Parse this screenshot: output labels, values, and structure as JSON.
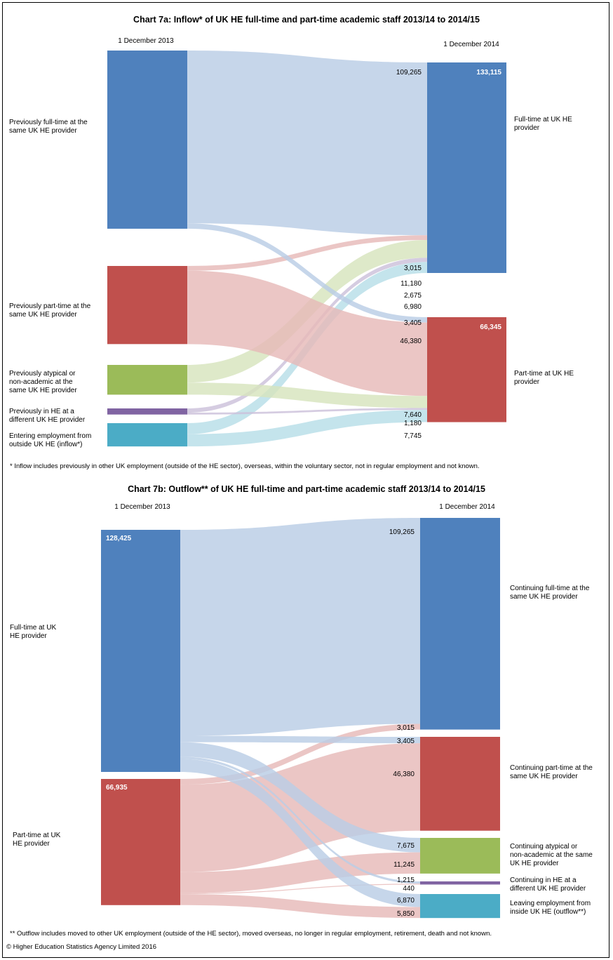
{
  "colors": {
    "blue": "#4f81bd",
    "blue_flow": "#b9cde5",
    "red": "#c0504d",
    "red_flow": "#e6b9b8",
    "green": "#9bbb59",
    "green_flow": "#d7e4bd",
    "purple": "#8064a2",
    "purple_flow": "#ccc1da",
    "teal": "#4bacc6",
    "teal_flow": "#b7dee8"
  },
  "chart_data": [
    {
      "type": "sankey",
      "title": "Chart 7a: Inflow* of UK HE full-time and part-time academic staff 2013/14  to  2014/15",
      "left_date": "1 December 2013",
      "right_date": "1 December 2014",
      "sources": [
        {
          "label": [
            "Previously full-time at the",
            "same UK HE  provider"
          ],
          "color": "blue"
        },
        {
          "label": [
            "Previously part-time at the",
            "same UK HE  provider"
          ],
          "color": "red"
        },
        {
          "label": [
            "Previously atypical or",
            "non-academic at the",
            "same UK HE  provider"
          ],
          "color": "green"
        },
        {
          "label": [
            "Previously in HE  at a",
            "different UK HE  provider"
          ],
          "color": "purple"
        },
        {
          "label": [
            "Entering employment from",
            "outside UK HE  (inflow*)"
          ],
          "color": "teal"
        }
      ],
      "targets": [
        {
          "label": [
            "Full-time  at UK HE",
            "provider"
          ],
          "total": "133,115",
          "color": "blue"
        },
        {
          "label": [
            "Part-time at UK HE",
            "provider"
          ],
          "total": "66,345",
          "color": "red"
        }
      ],
      "flows": [
        {
          "from": 0,
          "to": 0,
          "value": 109265,
          "label": "109,265"
        },
        {
          "from": 1,
          "to": 0,
          "value": 3015,
          "label": "3,015"
        },
        {
          "from": 2,
          "to": 0,
          "value": 11180,
          "label": "11,180"
        },
        {
          "from": 3,
          "to": 0,
          "value": 2675,
          "label": "2,675"
        },
        {
          "from": 4,
          "to": 0,
          "value": 6980,
          "label": "6,980"
        },
        {
          "from": 0,
          "to": 1,
          "value": 3405,
          "label": "3,405"
        },
        {
          "from": 1,
          "to": 1,
          "value": 46380,
          "label": "46,380"
        },
        {
          "from": 2,
          "to": 1,
          "value": 7640,
          "label": "7,640"
        },
        {
          "from": 3,
          "to": 1,
          "value": 1180,
          "label": "1,180"
        },
        {
          "from": 4,
          "to": 1,
          "value": 7745,
          "label": "7,745"
        }
      ],
      "footnote": "* Inflow includes previously in other UK employment  (outside of the HE  sector), overseas,  within the voluntary sector, not in regular employment  and not known."
    },
    {
      "type": "sankey",
      "title": "Chart 7b: Outflow** of UK HE full-time and part-time academic staff 2013/14  to  2014/15",
      "left_date": "1 December 2013",
      "right_date": "1 December 2014",
      "sources": [
        {
          "label": [
            "Full-time  at UK",
            "HE  provider"
          ],
          "total": "128,425",
          "color": "blue"
        },
        {
          "label": [
            "Part-time at UK",
            "HE  provider"
          ],
          "total": "66,935",
          "color": "red"
        }
      ],
      "targets": [
        {
          "label": [
            "Continuing  full-time at the",
            "same UK HE  provider"
          ],
          "color": "blue"
        },
        {
          "label": [
            "Continuing  part-time at the",
            "same UK HE  provider"
          ],
          "color": "red"
        },
        {
          "label": [
            "Continuing  atypical or",
            "non-academic at the same",
            "UK HE  provider"
          ],
          "color": "green"
        },
        {
          "label": [
            "Continuing  in HE  at a",
            "different UK HE  provider"
          ],
          "color": "purple"
        },
        {
          "label": [
            "Leaving employment  from",
            "inside UK HE  (outflow**)"
          ],
          "color": "teal"
        }
      ],
      "flows": [
        {
          "from": 0,
          "to": 0,
          "value": 109265,
          "label": "109,265"
        },
        {
          "from": 1,
          "to": 0,
          "value": 3015,
          "label": "3,015"
        },
        {
          "from": 0,
          "to": 1,
          "value": 3405,
          "label": "3,405"
        },
        {
          "from": 1,
          "to": 1,
          "value": 46380,
          "label": "46,380"
        },
        {
          "from": 0,
          "to": 2,
          "value": 7675,
          "label": "7,675"
        },
        {
          "from": 1,
          "to": 2,
          "value": 11245,
          "label": "11,245"
        },
        {
          "from": 0,
          "to": 3,
          "value": 1215,
          "label": "1,215"
        },
        {
          "from": 1,
          "to": 3,
          "value": 440,
          "label": "440"
        },
        {
          "from": 0,
          "to": 4,
          "value": 6870,
          "label": "6,870"
        },
        {
          "from": 1,
          "to": 4,
          "value": 5850,
          "label": "5,850"
        }
      ],
      "footnote": "** Outflow includes moved to other UK employment  (outside of the HE  sector), moved overseas, no longer in regular employment,  retirement, death and not known."
    }
  ],
  "copyright": "© Higher Education Statistics Agency Limited 2016"
}
